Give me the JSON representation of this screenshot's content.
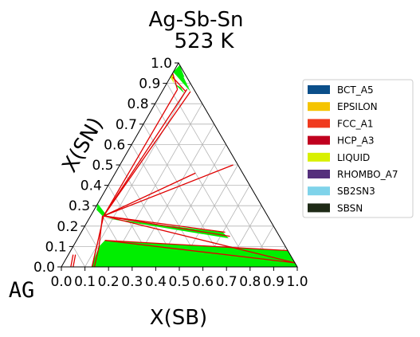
{
  "chart_data": {
    "type": "ternary",
    "title": "Ag-Sb-Sn",
    "subtitle": "523  K",
    "corner_label": "AG",
    "xlabel": "X(SB)",
    "ylabel": "X(SN)",
    "x_ticks": [
      "0.0",
      "0.1",
      "0.2",
      "0.3",
      "0.4",
      "0.5",
      "0.6",
      "0.7",
      "0.8",
      "0.9",
      "1.0"
    ],
    "y_ticks": [
      "0.0",
      "0.1",
      "0.2",
      "0.3",
      "0.4",
      "0.5",
      "0.6",
      "0.7",
      "0.8",
      "0.9",
      "1.0"
    ],
    "grid": true,
    "legend_position": "right",
    "legend": [
      {
        "name": "BCT_A5",
        "color": "#0b4f8a"
      },
      {
        "name": "EPSILON",
        "color": "#f5c400"
      },
      {
        "name": "FCC_A1",
        "color": "#f03a1e"
      },
      {
        "name": "HCP_A3",
        "color": "#c0001e"
      },
      {
        "name": "LIQUID",
        "color": "#d8f000"
      },
      {
        "name": "RHOMBO_A7",
        "color": "#55307c"
      },
      {
        "name": "SB2SN3",
        "color": "#7fd3ea"
      },
      {
        "name": "SBSN",
        "color": "#1e2a16"
      }
    ],
    "regions": [
      {
        "color": "#00ee00",
        "points": [
          [
            0.13,
            0.0
          ],
          [
            1.0,
            0.0
          ],
          [
            0.92,
            0.08
          ],
          [
            0.12,
            0.13
          ],
          [
            0.11,
            0.1
          ],
          [
            0.12,
            0.04
          ]
        ]
      },
      {
        "color": "#00ee00",
        "points": [
          [
            0.06,
            0.24
          ],
          [
            0.64,
            0.14
          ],
          [
            0.6,
            0.17
          ]
        ]
      },
      {
        "color": "#00ee00",
        "points": [
          [
            0.03,
            0.9
          ],
          [
            0.1,
            0.85
          ],
          [
            0.07,
            0.88
          ]
        ]
      },
      {
        "color": "#00ee00",
        "points": [
          [
            0.0,
            0.955
          ],
          [
            0.12,
            0.86
          ],
          [
            0.02,
            0.97
          ]
        ]
      },
      {
        "color": "#00ee00",
        "points": [
          [
            0.01,
            0.99
          ],
          [
            0.06,
            0.93
          ],
          [
            0.0,
            0.955
          ]
        ]
      },
      {
        "color": "#d8f000",
        "points": [
          [
            0.0,
            0.93
          ],
          [
            0.01,
            0.92
          ],
          [
            0.03,
            0.9
          ],
          [
            0.0,
            0.95
          ]
        ]
      },
      {
        "color": "#00ee00",
        "points": [
          [
            0.0,
            0.31
          ],
          [
            0.07,
            0.25
          ],
          [
            0.05,
            0.25
          ],
          [
            0.01,
            0.28
          ]
        ]
      }
    ],
    "red_lines": [
      [
        [
          0.055,
          0.25
        ],
        [
          0.12,
          0.86
        ]
      ],
      [
        [
          0.055,
          0.25
        ],
        [
          0.1,
          0.87
        ]
      ],
      [
        [
          0.055,
          0.25
        ],
        [
          0.06,
          0.87
        ]
      ],
      [
        [
          0.055,
          0.25
        ],
        [
          0.34,
          0.46
        ]
      ],
      [
        [
          0.055,
          0.25
        ],
        [
          0.48,
          0.5
        ]
      ],
      [
        [
          0.055,
          0.25
        ],
        [
          0.64,
          0.15
        ]
      ],
      [
        [
          0.055,
          0.25
        ],
        [
          0.61,
          0.17
        ]
      ],
      [
        [
          0.055,
          0.25
        ],
        [
          0.13,
          0.0
        ]
      ],
      [
        [
          0.055,
          0.25
        ],
        [
          0.98,
          0.02
        ]
      ],
      [
        [
          0.12,
          0.13
        ],
        [
          0.92,
          0.08
        ]
      ],
      [
        [
          0.12,
          0.13
        ],
        [
          0.98,
          0.02
        ]
      ],
      [
        [
          0.13,
          0.0
        ],
        [
          0.1,
          0.1
        ]
      ],
      [
        [
          0.14,
          0.0
        ],
        [
          0.11,
          0.1
        ]
      ],
      [
        [
          0.0,
          0.95
        ],
        [
          0.06,
          0.87
        ]
      ],
      [
        [
          0.01,
          0.93
        ],
        [
          0.1,
          0.86
        ]
      ],
      [
        [
          0.03,
          0.06
        ],
        [
          0.05,
          0.0
        ]
      ],
      [
        [
          0.02,
          0.06
        ],
        [
          0.04,
          0.0
        ]
      ],
      [
        [
          0.11,
          0.1
        ],
        [
          0.05,
          0.25
        ]
      ]
    ]
  }
}
